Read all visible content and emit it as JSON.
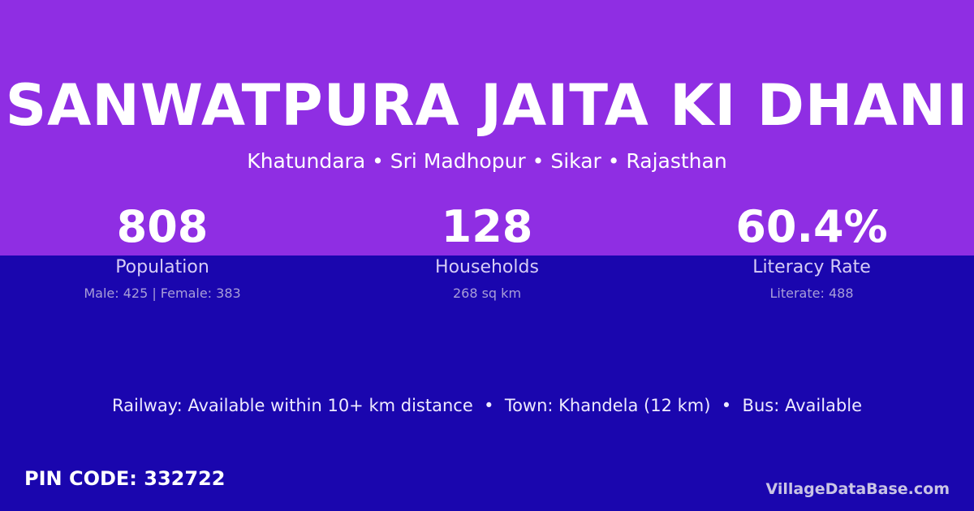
{
  "header": {
    "title": "SANWATPURA JAITA KI DHANI",
    "subtitle": "Khatundara • Sri Madhopur • Sikar • Rajasthan"
  },
  "stats": [
    {
      "value": "808",
      "label": "Population",
      "note": "Male: 425 | Female: 383"
    },
    {
      "value": "128",
      "label": "Households",
      "note": "268 sq km"
    },
    {
      "value": "60.4%",
      "label": "Literacy Rate",
      "note": "Literate: 488"
    }
  ],
  "footer": {
    "connectivity": "Railway: Available within 10+ km distance  •  Town: Khandela (12 km)  •  Bus: Available",
    "pin": "PIN CODE: 332722",
    "site": "VillageDataBase.com"
  }
}
